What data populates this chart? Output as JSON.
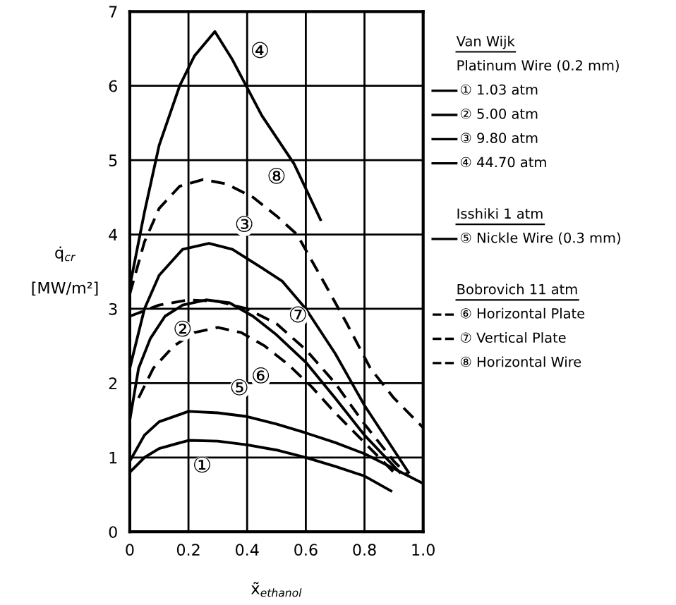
{
  "chart_data": {
    "type": "line",
    "xlabel": "x̃$_{ethanol}$",
    "ylabel": "q̇$_{cr}$\n\n[MW/m²]",
    "xlim": [
      0,
      1.0
    ],
    "ylim": [
      0,
      7
    ],
    "xticks": [
      0,
      0.2,
      0.4,
      0.6,
      0.8,
      {
        "value": 1.0,
        "label": "1.0"
      }
    ],
    "yticks": [
      0,
      1,
      2,
      3,
      4,
      5,
      6,
      7
    ],
    "grid": true,
    "legend": "right",
    "marker": "none",
    "series": [
      {
        "name": "① 1.03 atm",
        "color": "#000000",
        "line_style": "solid",
        "x": [
          0,
          0.05,
          0.1,
          0.2,
          0.3,
          0.4,
          0.5,
          0.6,
          0.7,
          0.8,
          0.89
        ],
        "values": [
          0.8,
          1.0,
          1.12,
          1.23,
          1.22,
          1.17,
          1.1,
          1.0,
          0.88,
          0.75,
          0.55
        ]
      },
      {
        "name": "② 5.00 atm",
        "color": "#000000",
        "line_style": "solid",
        "x": [
          0,
          0.03,
          0.07,
          0.12,
          0.18,
          0.26,
          0.34,
          0.42,
          0.5,
          0.6,
          0.7,
          0.8,
          0.92
        ],
        "values": [
          1.5,
          2.2,
          2.6,
          2.9,
          3.05,
          3.12,
          3.08,
          2.9,
          2.65,
          2.28,
          1.8,
          1.3,
          0.8
        ]
      },
      {
        "name": "③ 9.80 atm",
        "color": "#000000",
        "line_style": "solid",
        "x": [
          0,
          0.05,
          0.1,
          0.18,
          0.27,
          0.35,
          0.45,
          0.52,
          0.6,
          0.7,
          0.8,
          0.9,
          0.95
        ],
        "values": [
          2.2,
          3.0,
          3.45,
          3.8,
          3.88,
          3.8,
          3.55,
          3.37,
          3.0,
          2.4,
          1.7,
          1.1,
          0.8
        ]
      },
      {
        "name": "④ 44.70 atm",
        "color": "#000000",
        "line_style": "solid",
        "x": [
          0,
          0.05,
          0.1,
          0.17,
          0.22,
          0.29,
          0.35,
          0.45,
          0.56,
          0.65
        ],
        "values": [
          3.3,
          4.3,
          5.2,
          6.0,
          6.4,
          6.73,
          6.35,
          5.6,
          4.95,
          4.2
        ]
      },
      {
        "name": "⑤ Nickle Wire (0.3 mm)",
        "color": "#000000",
        "line_style": "solid",
        "x": [
          0,
          0.05,
          0.1,
          0.2,
          0.3,
          0.4,
          0.5,
          0.6,
          0.7,
          0.8,
          0.9,
          1.0
        ],
        "values": [
          0.95,
          1.3,
          1.48,
          1.62,
          1.6,
          1.55,
          1.45,
          1.33,
          1.2,
          1.05,
          0.85,
          0.65
        ]
      },
      {
        "name": "⑥ Horizontal Plate",
        "color": "#000000",
        "line_style": "dashed",
        "x": [
          0.03,
          0.08,
          0.15,
          0.22,
          0.3,
          0.38,
          0.46,
          0.54,
          0.62,
          0.7,
          0.8,
          0.9
        ],
        "values": [
          1.8,
          2.2,
          2.5,
          2.68,
          2.75,
          2.68,
          2.5,
          2.25,
          1.95,
          1.6,
          1.2,
          0.8
        ]
      },
      {
        "name": "⑦ Vertical Plate",
        "color": "#000000",
        "line_style": "dashed",
        "x": [
          0,
          0.1,
          0.2,
          0.3,
          0.4,
          0.5,
          0.6,
          0.7,
          0.8,
          0.9,
          0.95
        ],
        "values": [
          2.9,
          3.05,
          3.12,
          3.1,
          3.0,
          2.8,
          2.45,
          2.0,
          1.45,
          0.95,
          0.75
        ]
      },
      {
        "name": "⑧ Horizontal Wire",
        "color": "#000000",
        "line_style": "dashed",
        "x": [
          0,
          0.05,
          0.1,
          0.17,
          0.25,
          0.33,
          0.42,
          0.5,
          0.57,
          0.66,
          0.74,
          0.82,
          0.9,
          1.0
        ],
        "values": [
          3.2,
          3.9,
          4.35,
          4.65,
          4.74,
          4.68,
          4.5,
          4.25,
          4.0,
          3.37,
          2.8,
          2.2,
          1.8,
          1.4
        ]
      }
    ],
    "annotations": [
      "Van Wijk",
      "Platinum Wire (0.2 mm)",
      "Isshiki 1 atm",
      "Bobrovich 11 atm",
      {
        "text": "①",
        "x": 0.3,
        "y": 1.22
      },
      {
        "text": "②",
        "x": 0.18,
        "y": 3.05
      },
      {
        "text": "③",
        "x": 0.35,
        "y": 3.8
      },
      {
        "text": "④",
        "x": 0.35,
        "y": 6.35
      },
      {
        "text": "⑤",
        "x": 0.4,
        "y": 1.55
      },
      {
        "text": "⑥",
        "x": 0.46,
        "y": 2.5
      },
      {
        "text": "⑦",
        "x": 0.6,
        "y": 2.45
      },
      {
        "text": "⑧",
        "x": 0.42,
        "y": 4.5
      }
    ]
  }
}
